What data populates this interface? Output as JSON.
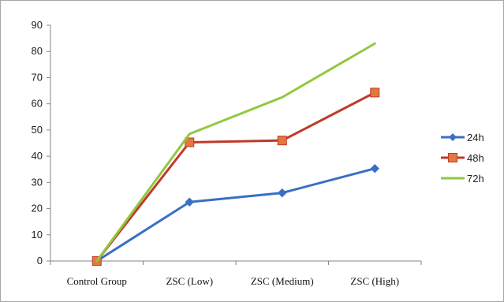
{
  "chart_data": {
    "type": "line",
    "title": "",
    "xlabel": "",
    "ylabel": "",
    "categories": [
      "Control Group",
      "ZSC (Low)",
      "ZSC (Medium)",
      "ZSC (High)"
    ],
    "ylim": [
      0,
      90
    ],
    "y_ticks": [
      0,
      10,
      20,
      30,
      40,
      50,
      60,
      70,
      80,
      90
    ],
    "grid": false,
    "legend_position": "right",
    "series": [
      {
        "name": "24h",
        "values": [
          0,
          22.5,
          26,
          35.3
        ],
        "color": "#3a6fc4",
        "marker": "diamond"
      },
      {
        "name": "48h",
        "values": [
          0,
          45.3,
          46,
          64.3
        ],
        "color": "#c0392b",
        "marker": "square"
      },
      {
        "name": "72h",
        "values": [
          0,
          48.5,
          62.5,
          83
        ],
        "color": "#92c83e",
        "marker": "none"
      }
    ]
  }
}
